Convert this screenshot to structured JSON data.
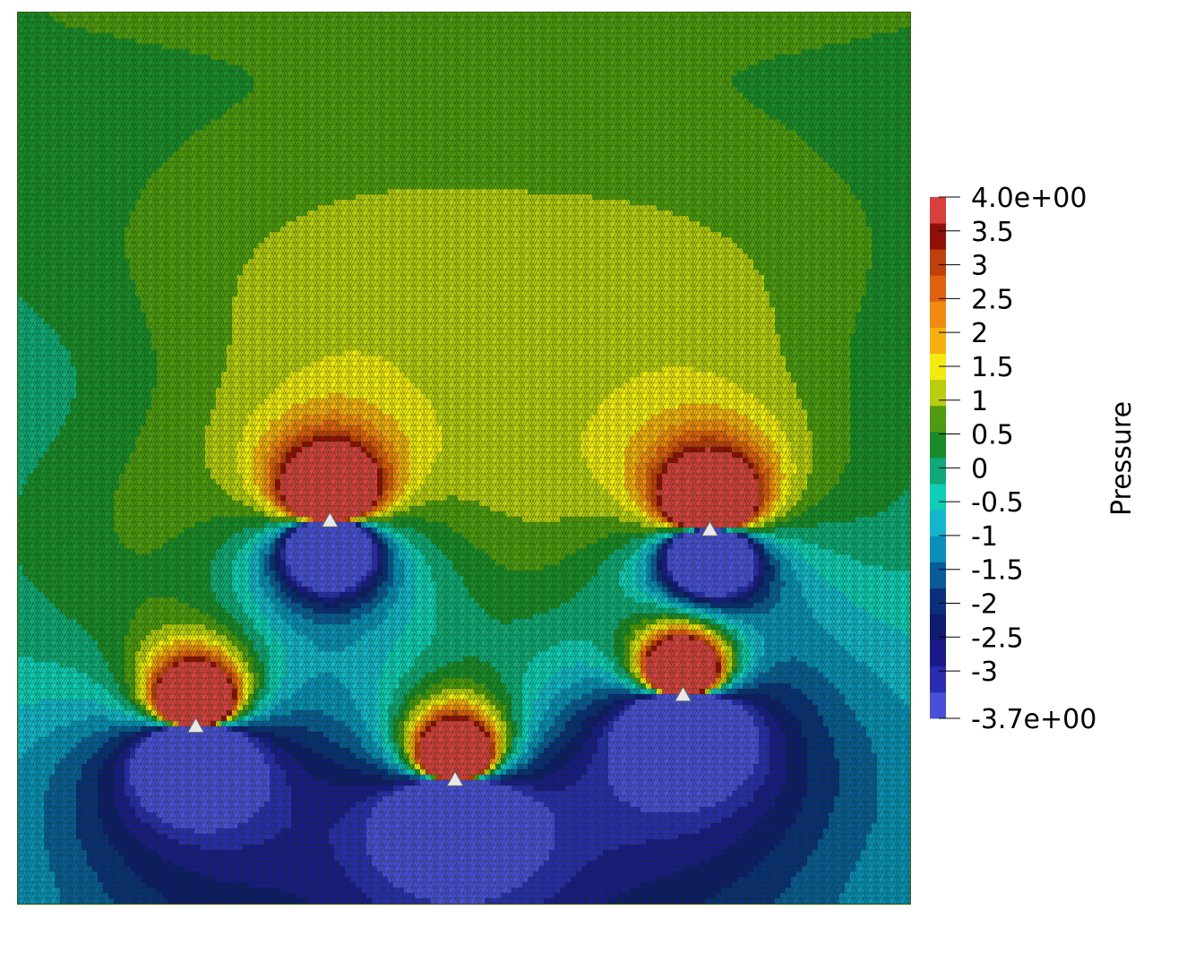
{
  "chart_data": {
    "type": "heatmap",
    "title": "",
    "xlabel": "",
    "ylabel": "",
    "colorbar": {
      "label": "Pressure",
      "range": [
        -3.7,
        4.0
      ],
      "bands": 20,
      "ticks": [
        {
          "value": 4.0,
          "label": "4.0e+00"
        },
        {
          "value": 3.5,
          "label": "3.5"
        },
        {
          "value": 3.0,
          "label": "3"
        },
        {
          "value": 2.5,
          "label": "2.5"
        },
        {
          "value": 2.0,
          "label": "2"
        },
        {
          "value": 1.5,
          "label": "1.5"
        },
        {
          "value": 1.0,
          "label": "1"
        },
        {
          "value": 0.5,
          "label": "0.5"
        },
        {
          "value": 0.0,
          "label": "0"
        },
        {
          "value": -0.5,
          "label": "-0.5"
        },
        {
          "value": -1.0,
          "label": "-1"
        },
        {
          "value": -1.5,
          "label": "-1.5"
        },
        {
          "value": -2.0,
          "label": "-2"
        },
        {
          "value": -2.5,
          "label": "-2.5"
        },
        {
          "value": -3.0,
          "label": "-3"
        },
        {
          "value": -3.7,
          "label": "-3.7e+00"
        }
      ]
    },
    "colormap": [
      "#4a4ed8",
      "#2a2db0",
      "#1b1a8a",
      "#0f1b6e",
      "#0a2f7a",
      "#0a5c98",
      "#0a8fb8",
      "#14b6cc",
      "#10cdb8",
      "#10a878",
      "#1b8a2a",
      "#4f9a10",
      "#b9cc10",
      "#f3ea10",
      "#f5b010",
      "#f08a10",
      "#e06010",
      "#c0400c",
      "#901008",
      "#d84040"
    ],
    "domain": {
      "x": [
        0,
        1
      ],
      "y": [
        0,
        1
      ]
    },
    "background_value": -0.45,
    "sources": [
      {
        "x": 0.35,
        "y": 0.43,
        "strength": 1.0
      },
      {
        "x": 0.775,
        "y": 0.42,
        "strength": 1.0
      },
      {
        "x": 0.2,
        "y": 0.2,
        "strength": 1.0
      },
      {
        "x": 0.49,
        "y": 0.14,
        "strength": 1.0
      },
      {
        "x": 0.745,
        "y": 0.235,
        "strength": 1.0
      }
    ],
    "mesh_overlay": true
  }
}
